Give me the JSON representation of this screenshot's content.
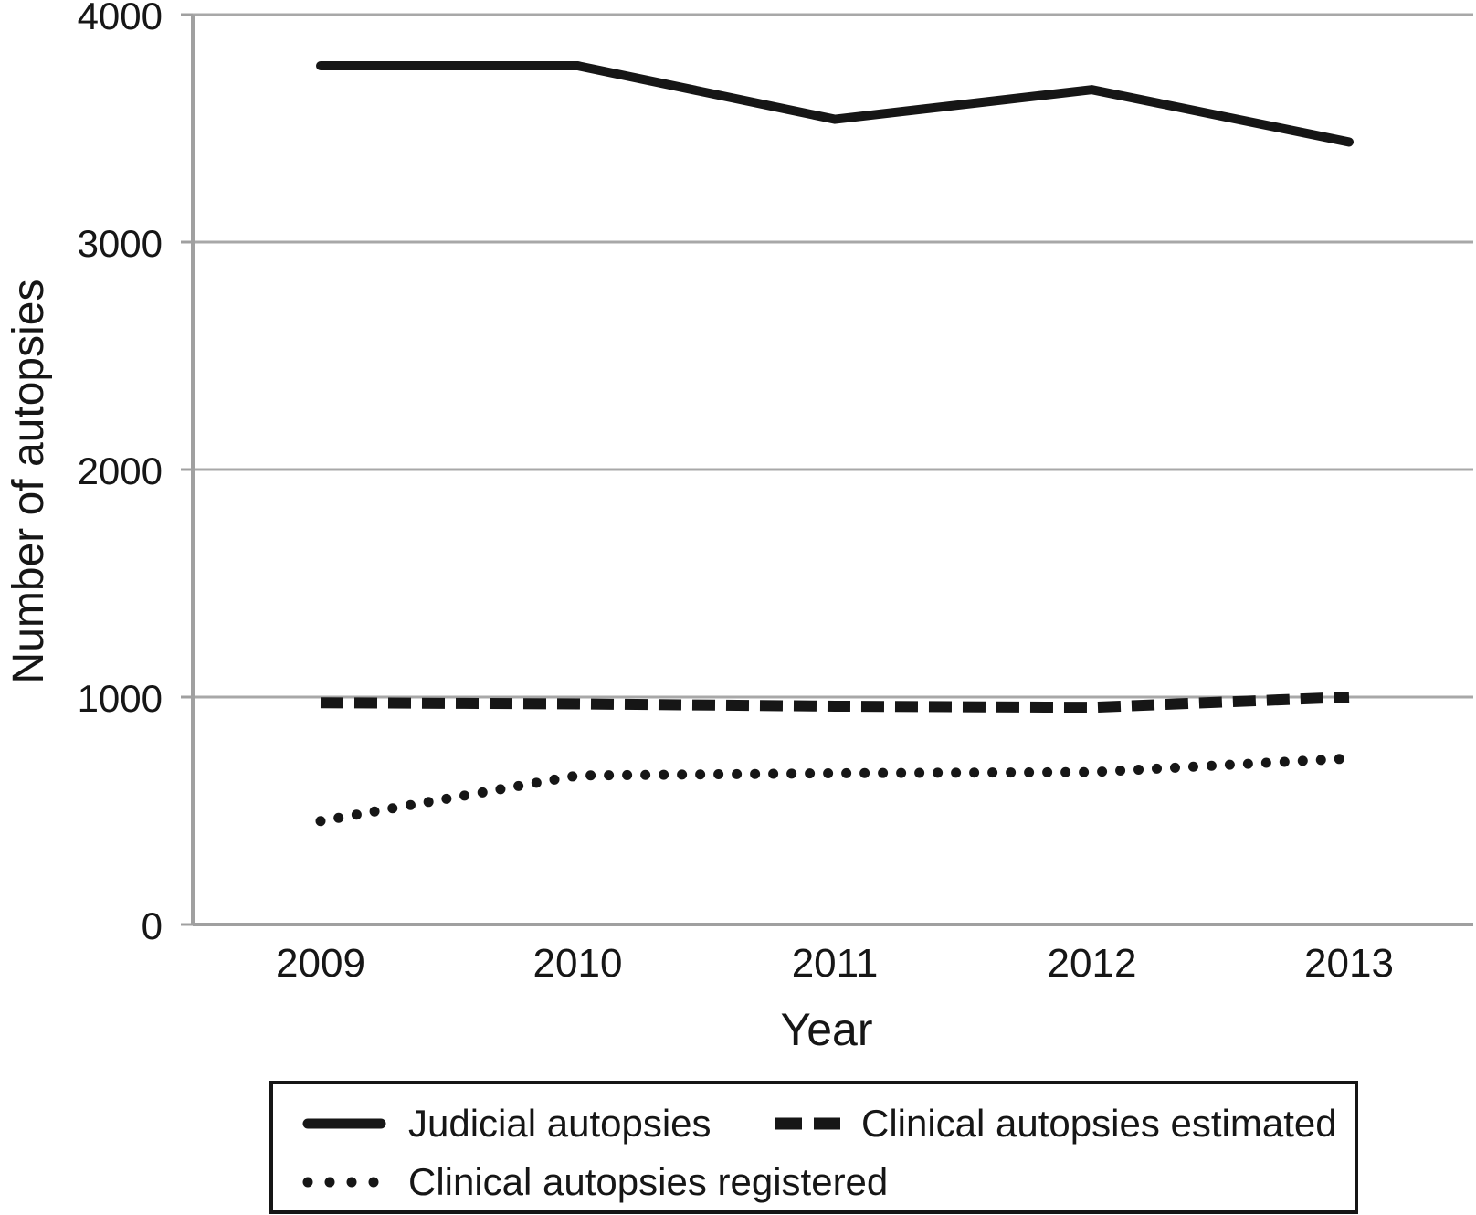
{
  "figure": {
    "background": "#ffffff",
    "line_color": "#161616",
    "axis_color": "#a0a0a0",
    "gridline_color": "#a8a8a8",
    "text_color": "#161616"
  },
  "chart_data": {
    "type": "line",
    "title": "",
    "xlabel": "Year",
    "ylabel": "Number of autopsies",
    "categories": [
      "2009",
      "2010",
      "2011",
      "2012",
      "2013"
    ],
    "y_ticks": [
      0,
      1000,
      2000,
      3000,
      4000
    ],
    "ylim": [
      0,
      4000
    ],
    "grid": "horizontal gridlines at every 1000",
    "legend_position": "bottom boxed legend, two rows",
    "series": [
      {
        "name": "Judicial autopsies",
        "line_style": "solid",
        "values": [
          3775,
          3775,
          3540,
          3670,
          3440
        ]
      },
      {
        "name": "Clinical autopsies estimated",
        "line_style": "dashed",
        "values": [
          975,
          970,
          960,
          955,
          1000
        ]
      },
      {
        "name": "Clinical autopsies registered",
        "line_style": "dotted",
        "values": [
          455,
          655,
          665,
          670,
          730
        ]
      }
    ]
  }
}
